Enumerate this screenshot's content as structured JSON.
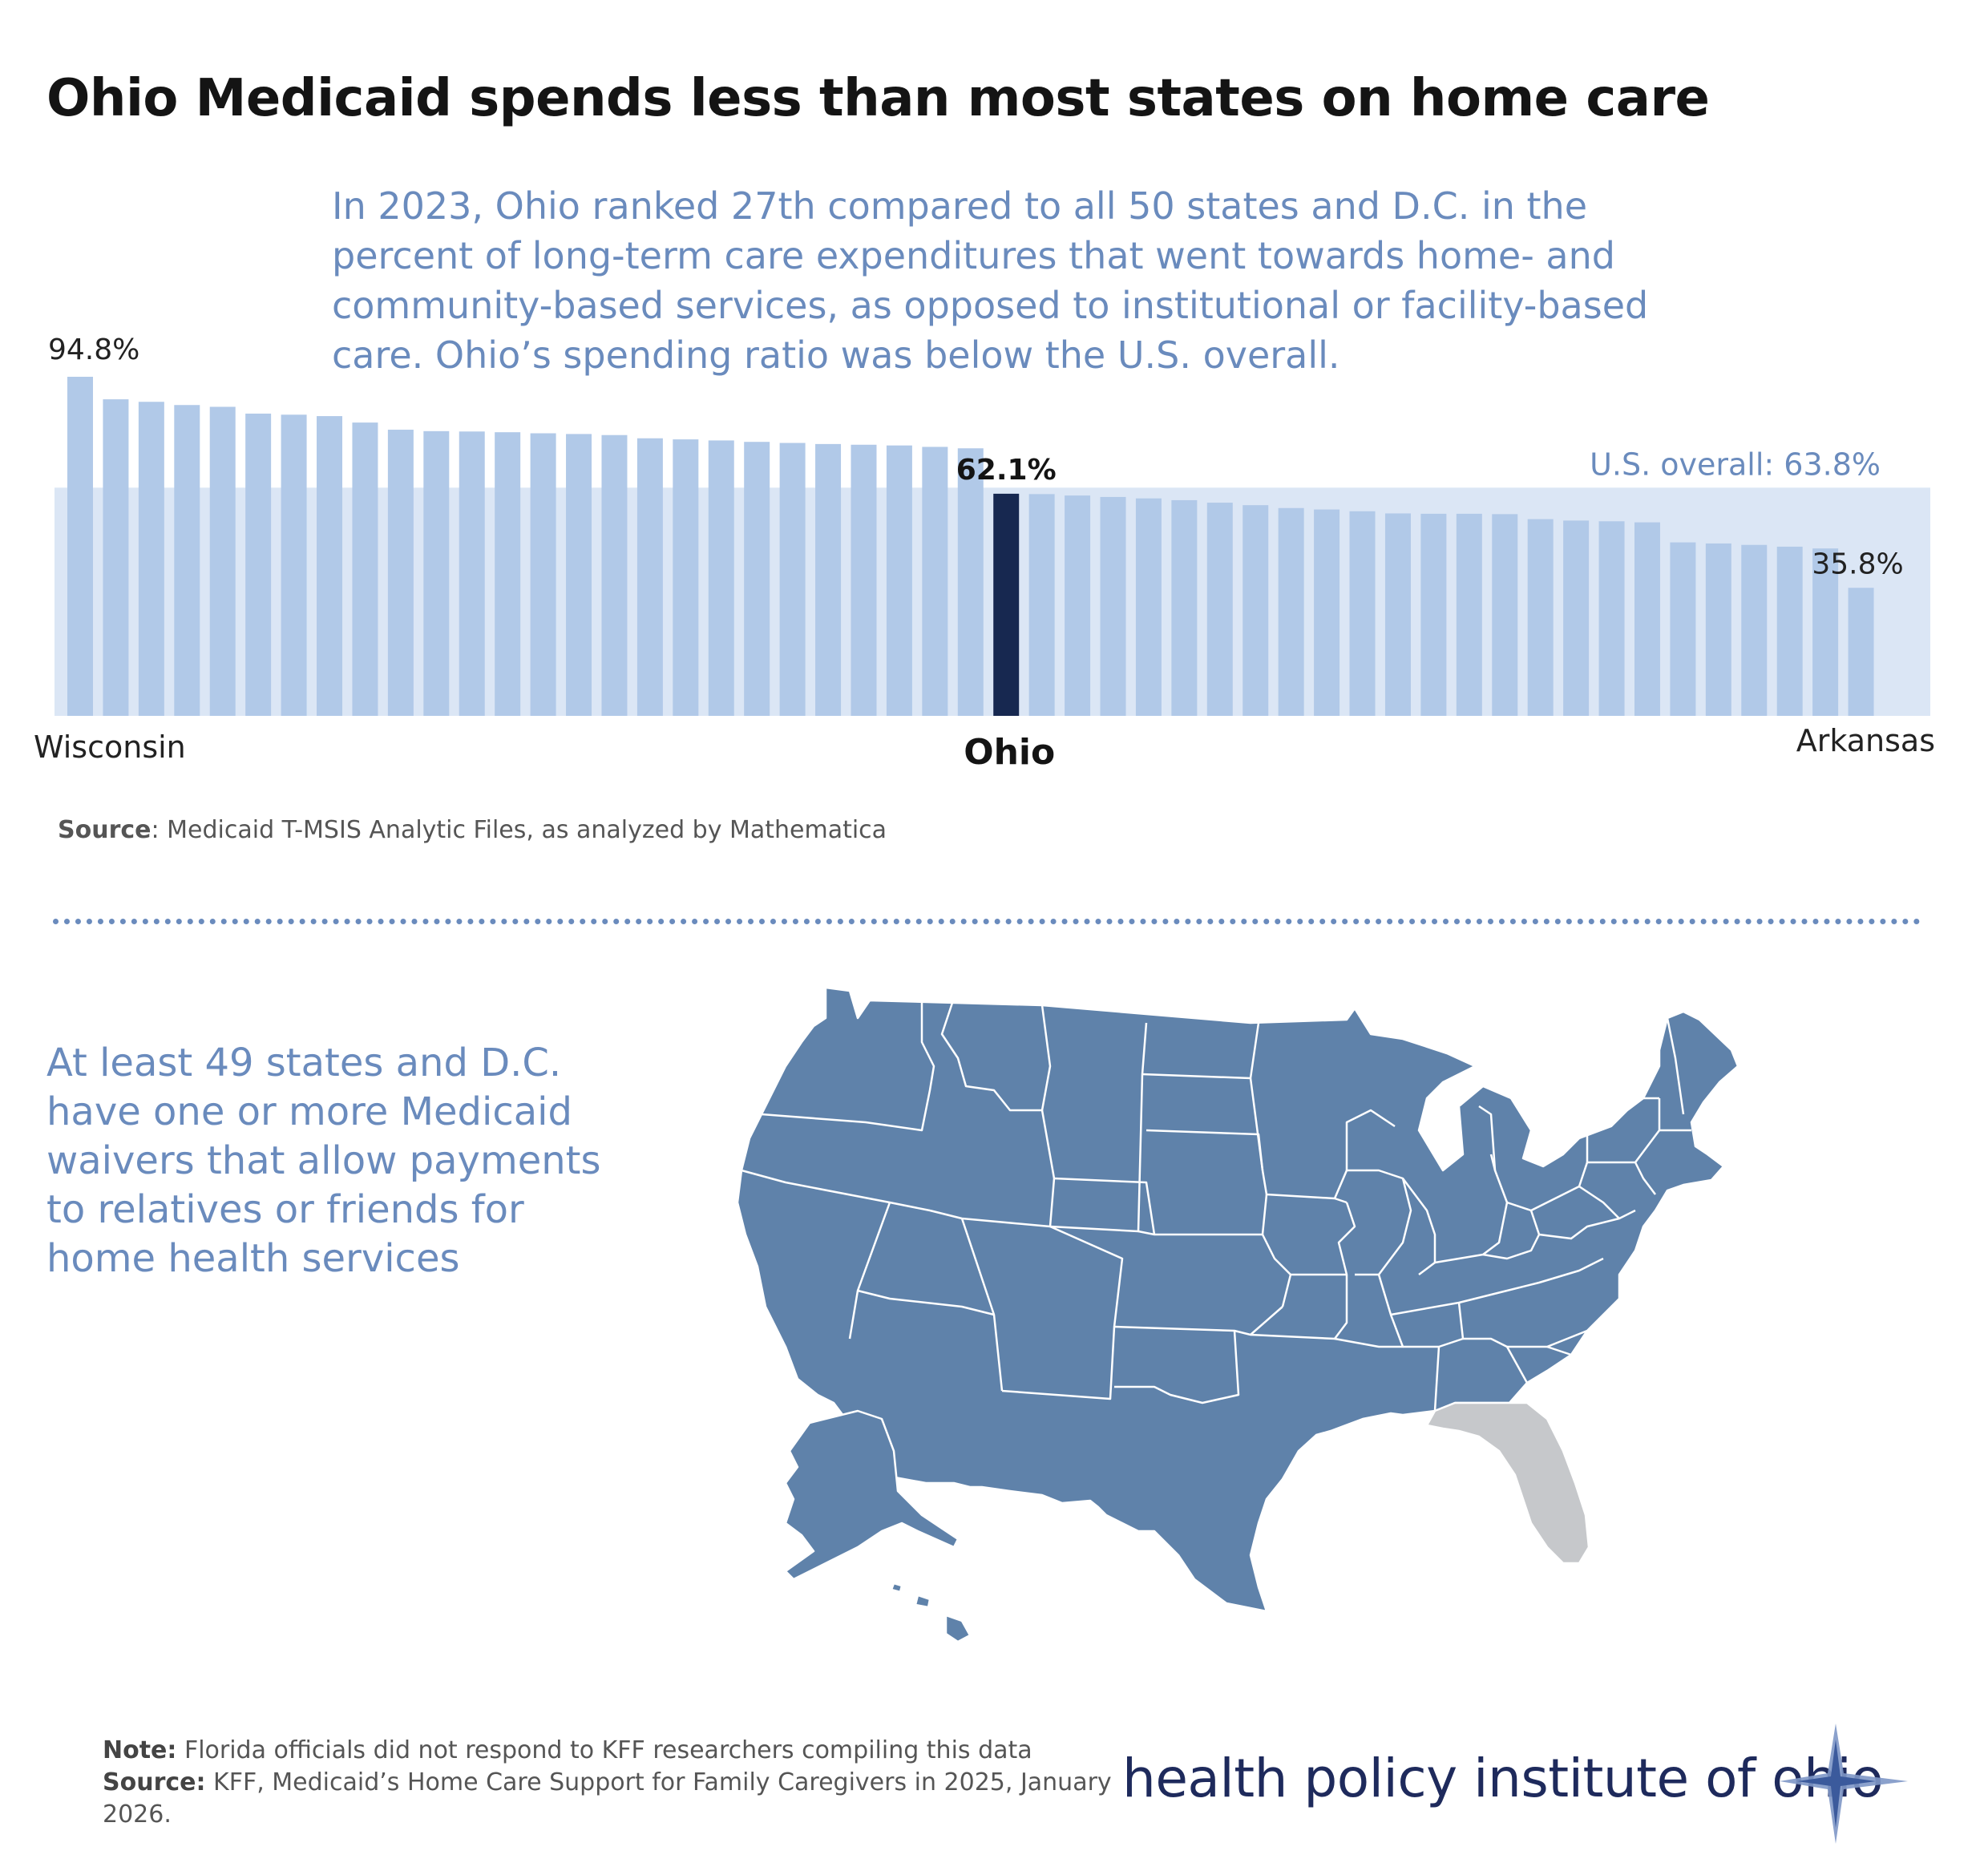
{
  "title": "Ohio Medicaid spends less than most states on home care",
  "subtitle": "In 2023, Ohio ranked 27th compared to all 50 states and D.C. in the percent of long-term care expenditures that went towards home- and community-based services, as opposed to institutional or facility-based care. Ohio’s spending ratio was below the U.S. overall.",
  "chart_data": {
    "type": "bar",
    "series": [
      {
        "values": [
          94.8,
          88.5,
          87.8,
          86.9,
          86.4,
          84.5,
          84.2,
          83.8,
          82.0,
          80.0,
          79.6,
          79.5,
          79.3,
          79.0,
          78.8,
          78.5,
          77.6,
          77.3,
          77.0,
          76.6,
          76.3,
          76.0,
          75.8,
          75.6,
          75.2,
          74.8,
          62.1,
          62.0,
          61.6,
          61.2,
          60.8,
          60.3,
          59.6,
          58.9,
          58.1,
          57.7,
          57.2,
          56.6,
          56.5,
          56.5,
          56.4,
          55.0,
          54.6,
          54.4,
          54.1,
          48.5,
          48.2,
          47.8,
          47.3,
          46.8,
          35.8
        ],
        "highlight_index": 26
      }
    ],
    "labels": {
      "first_value": "94.8%",
      "ohio_value": "62.1%",
      "last_value": "35.8%",
      "first_state": "Wisconsin",
      "ohio_state": "Ohio",
      "last_state": "Arkansas",
      "reference": "U.S. overall: 63.8%"
    },
    "reference_value": 63.8,
    "ylim": [
      0,
      100
    ],
    "colors": {
      "bar": "#b1c9e8",
      "highlight": "#172850",
      "band": "#dbe6f5",
      "label_blue": "#6a8bbd"
    }
  },
  "source1": {
    "label": "Source",
    "text": ": Medicaid T-MSIS Analytic Files, as analyzed by Mathematica"
  },
  "waiver_text": "At least 49 states and D.C. have one or more Medicaid waivers that allow payments  to relatives or friends for home health services",
  "map": {
    "colors": {
      "states": "#5f82aa",
      "florida": "#c6c8cb",
      "border": "#ffffff"
    },
    "highlighted_grey": "Florida"
  },
  "note": {
    "note_label": "Note:",
    "note_text": " Florida officials did not respond to KFF researchers compiling this data",
    "source_label": "Source:",
    "source_text": " KFF, Medicaid’s Home Care Support for Family Caregivers in 2025, January 2026."
  },
  "logo": {
    "text": "health policy institute of ohio",
    "color": "#1e2a5c"
  }
}
